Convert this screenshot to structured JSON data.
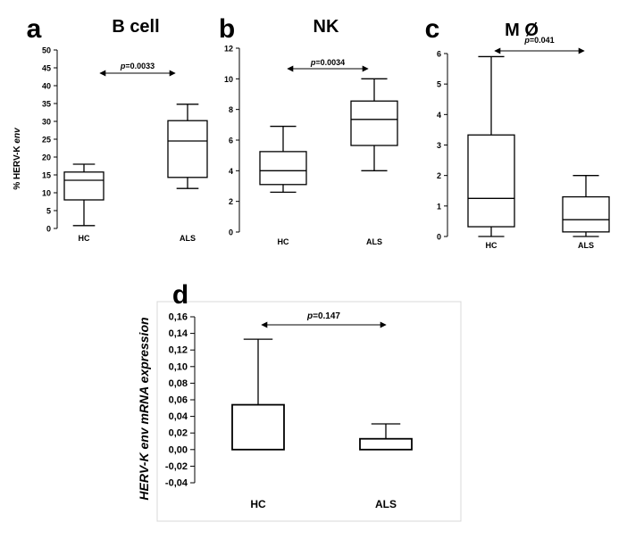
{
  "chart_data": [
    {
      "id": "a",
      "panel_label": "a",
      "type": "box",
      "title": "B cell",
      "ylabel_prefix": "% HERV-K ",
      "ylabel_italic": "env",
      "ylim": [
        0,
        50
      ],
      "ticks": [
        "0",
        "5",
        "10",
        "15",
        "20",
        "25",
        "30",
        "35",
        "40",
        "45",
        "50"
      ],
      "tick_values": [
        0,
        5,
        10,
        15,
        20,
        25,
        30,
        35,
        40,
        45,
        50
      ],
      "categories": [
        "HC",
        "ALS"
      ],
      "boxes": [
        {
          "name": "HC",
          "min": 0.8,
          "q1": 8.0,
          "median": 13.5,
          "q3": 15.8,
          "max": 18.0
        },
        {
          "name": "ALS",
          "min": 11.2,
          "q1": 14.3,
          "median": 24.5,
          "q3": 30.2,
          "max": 34.8
        }
      ],
      "p_prefix": "p",
      "p_value": "=0.0033"
    },
    {
      "id": "b",
      "panel_label": "b",
      "type": "box",
      "title": "NK",
      "ylim": [
        0,
        12
      ],
      "ticks": [
        "0",
        "2",
        "4",
        "6",
        "8",
        "10",
        "12"
      ],
      "tick_values": [
        0,
        2,
        4,
        6,
        8,
        10,
        12
      ],
      "categories": [
        "HC",
        "ALS"
      ],
      "boxes": [
        {
          "name": "HC",
          "min": 2.6,
          "q1": 3.1,
          "median": 4.0,
          "q3": 5.25,
          "max": 6.9
        },
        {
          "name": "ALS",
          "min": 4.0,
          "q1": 5.65,
          "median": 7.35,
          "q3": 8.55,
          "max": 10.0
        }
      ],
      "p_prefix": "p",
      "p_value": "=0.0034"
    },
    {
      "id": "c",
      "panel_label": "c",
      "type": "box",
      "title": "M Ø",
      "ylim": [
        0,
        6
      ],
      "ticks": [
        "0",
        "1",
        "2",
        "3",
        "4",
        "5",
        "6"
      ],
      "tick_values": [
        0,
        1,
        2,
        3,
        4,
        5,
        6
      ],
      "categories": [
        "HC",
        "ALS"
      ],
      "boxes": [
        {
          "name": "HC",
          "min": 0.0,
          "q1": 0.32,
          "median": 1.25,
          "q3": 3.33,
          "max": 5.9
        },
        {
          "name": "ALS",
          "min": 0.0,
          "q1": 0.15,
          "median": 0.55,
          "q3": 1.3,
          "max": 2.0
        }
      ],
      "p_prefix": "p",
      "p_value": "=0.041"
    },
    {
      "id": "d",
      "panel_label": "d",
      "type": "box",
      "title": "",
      "ylabel": "HERV-K env mRNA expression",
      "ylim": [
        -0.04,
        0.16
      ],
      "ticks": [
        "-0,04",
        "-0,02",
        "0,00",
        "0,02",
        "0,04",
        "0,06",
        "0,08",
        "0,10",
        "0,12",
        "0,14",
        "0,16"
      ],
      "tick_values": [
        -0.04,
        -0.02,
        0.0,
        0.02,
        0.04,
        0.06,
        0.08,
        0.1,
        0.12,
        0.14,
        0.16
      ],
      "categories": [
        "HC",
        "ALS"
      ],
      "boxes": [
        {
          "name": "HC",
          "min": 0.0,
          "q1": 0.0,
          "median": 0.0,
          "q3": 0.054,
          "max": 0.133
        },
        {
          "name": "ALS",
          "min": 0.0,
          "q1": 0.0,
          "median": 0.0,
          "q3": 0.013,
          "max": 0.031
        }
      ],
      "p_prefix": "p",
      "p_value": "=0.147"
    }
  ]
}
